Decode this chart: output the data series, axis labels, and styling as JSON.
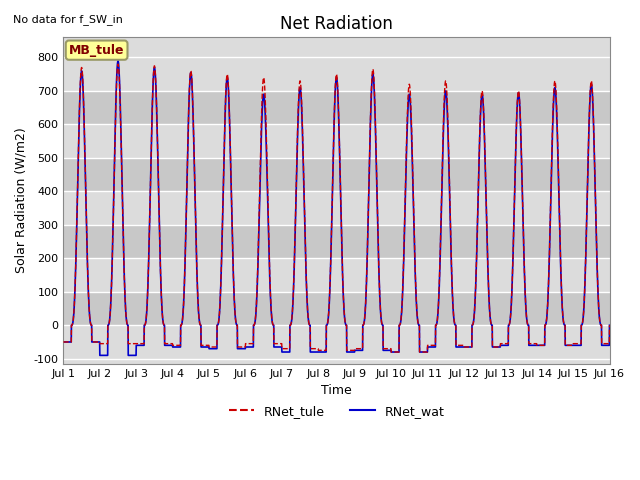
{
  "title": "Net Radiation",
  "xlabel": "Time",
  "ylabel": "Solar Radiation (W/m2)",
  "note": "No data for f_SW_in",
  "xlim": [
    0,
    15
  ],
  "ylim": [
    -100,
    850
  ],
  "yticks": [
    -100,
    0,
    100,
    200,
    300,
    400,
    500,
    600,
    700,
    800
  ],
  "xtick_labels": [
    "Jul 1",
    "Jul 2",
    "Jul 3",
    "Jul 4",
    "Jul 5",
    "Jul 6",
    "Jul 7",
    "Jul 8",
    "Jul 9",
    "Jul 10",
    "Jul 11",
    "Jul 12",
    "Jul 13",
    "Jul 14",
    "Jul 15",
    "Jul 16"
  ],
  "xtick_positions": [
    0,
    1,
    2,
    3,
    4,
    5,
    6,
    7,
    8,
    9,
    10,
    11,
    12,
    13,
    14,
    15
  ],
  "legend_labels": [
    "RNet_tule",
    "RNet_wat"
  ],
  "legend_colors": [
    "#cc0000",
    "#0000cc"
  ],
  "legend_styles": [
    "--",
    "-"
  ],
  "box_label": "MB_tule",
  "box_facecolor": "#ffff99",
  "box_edgecolor": "#999966",
  "bg_color_light": "#dcdcdc",
  "bg_color_dark": "#c8c8c8",
  "grid_color": "#ffffff",
  "tule_peaks": [
    770,
    780,
    775,
    760,
    750,
    740,
    730,
    750,
    765,
    720,
    730,
    700,
    700,
    730,
    730
  ],
  "wat_peaks": [
    760,
    790,
    770,
    755,
    740,
    690,
    710,
    740,
    750,
    690,
    700,
    690,
    695,
    710,
    720
  ],
  "tule_troughs": [
    -50,
    -55,
    -55,
    -60,
    -65,
    -55,
    -70,
    -75,
    -70,
    -80,
    -60,
    -65,
    -55,
    -60,
    -55
  ],
  "wat_troughs": [
    -50,
    -90,
    -60,
    -65,
    -70,
    -65,
    -80,
    -80,
    -75,
    -80,
    -65,
    -65,
    -60,
    -60,
    -60
  ]
}
